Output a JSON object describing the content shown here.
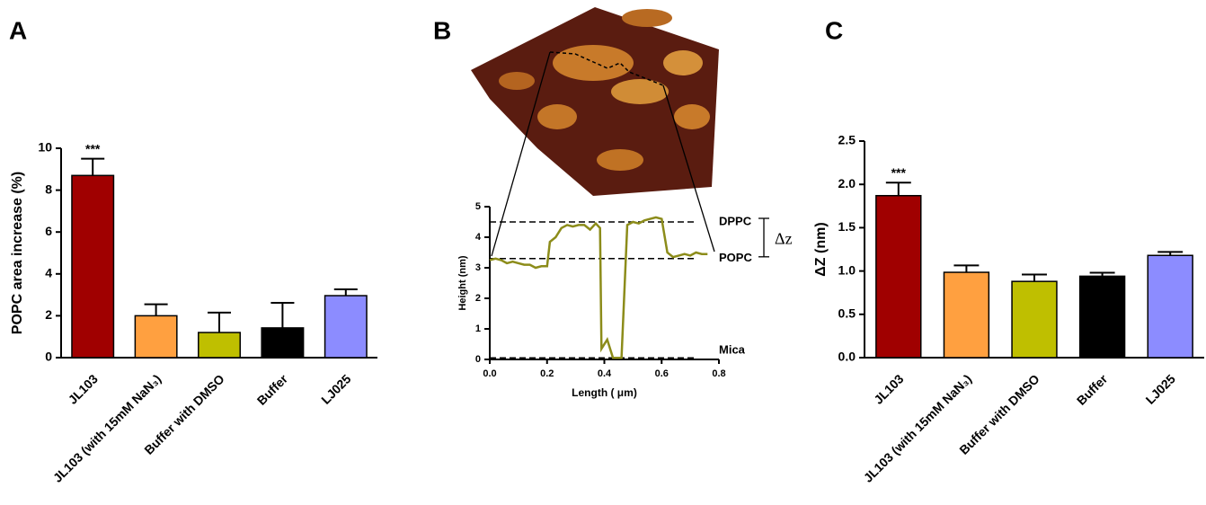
{
  "chart_data": [
    {
      "type": "bar",
      "panel_label": "A",
      "ylabel": "POPC area increase (%)",
      "categories": [
        "JL103",
        "JL103 (with 15mM NaN₃)",
        "Buffer with DMSO",
        "Buffer",
        "LJ025"
      ],
      "values": [
        8.7,
        2.0,
        1.2,
        1.42,
        2.96
      ],
      "errors": [
        0.8,
        0.55,
        0.95,
        1.2,
        0.3
      ],
      "colors": [
        "#a00000",
        "#ffa040",
        "#bfbf00",
        "#000000",
        "#8c8cff"
      ],
      "ylim": [
        0,
        10
      ],
      "yticks": [
        0,
        2,
        4,
        6,
        8,
        10
      ],
      "annotations": [
        {
          "text": "***",
          "x": "JL103"
        }
      ]
    },
    {
      "type": "line",
      "panel_label": "B",
      "xlabel": "Length ( μm)",
      "ylabel": "Height (nm)",
      "x": [
        0.0,
        0.02,
        0.04,
        0.06,
        0.08,
        0.1,
        0.12,
        0.14,
        0.16,
        0.18,
        0.2,
        0.21,
        0.23,
        0.25,
        0.27,
        0.29,
        0.31,
        0.33,
        0.35,
        0.37,
        0.385,
        0.39,
        0.41,
        0.43,
        0.45,
        0.46,
        0.48,
        0.5,
        0.52,
        0.54,
        0.56,
        0.58,
        0.6,
        0.62,
        0.64,
        0.66,
        0.68,
        0.7,
        0.72,
        0.74,
        0.76
      ],
      "values": [
        3.25,
        3.3,
        3.25,
        3.15,
        3.2,
        3.15,
        3.1,
        3.1,
        3.0,
        3.05,
        3.05,
        3.85,
        4.0,
        4.3,
        4.4,
        4.35,
        4.4,
        4.4,
        4.25,
        4.45,
        4.3,
        0.35,
        0.65,
        0.05,
        0.05,
        0.05,
        4.4,
        4.5,
        4.45,
        4.55,
        4.6,
        4.65,
        4.6,
        3.5,
        3.35,
        3.4,
        3.45,
        3.4,
        3.5,
        3.45,
        3.45
      ],
      "color": "#8c8c1a",
      "xlim": [
        0,
        0.8
      ],
      "xticks": [
        {
          "value": 0,
          "label": "0.0"
        },
        0.2,
        0.4,
        0.6,
        0.8
      ],
      "ylim": [
        0,
        5
      ],
      "yticks": [
        0,
        1,
        2,
        3,
        4,
        5
      ],
      "reference_lines": [
        {
          "label": "DPPC",
          "value": 4.5
        },
        {
          "label": "POPC",
          "value": 3.3
        },
        {
          "label": "Mica",
          "value": 0.05
        }
      ],
      "delta_label": "Δz"
    },
    {
      "type": "bar",
      "panel_label": "C",
      "ylabel": "ΔZ (nm)",
      "categories": [
        "JL103",
        "JL103 (with 15mM NaN₃)",
        "Buffer with DMSO",
        "Buffer",
        "LJ025"
      ],
      "values": [
        1.87,
        0.985,
        0.88,
        0.94,
        1.18
      ],
      "errors": [
        0.15,
        0.08,
        0.08,
        0.04,
        0.04
      ],
      "colors": [
        "#a00000",
        "#ffa040",
        "#bfbf00",
        "#000000",
        "#8c8cff"
      ],
      "ylim": [
        0,
        2.5
      ],
      "yticks": [
        {
          "value": 0,
          "label": "0.0"
        },
        0.5,
        {
          "value": 1,
          "label": "1.0"
        },
        1.5,
        {
          "value": 2,
          "label": "2.0"
        },
        2.5
      ],
      "annotations": [
        {
          "text": "***",
          "x": "JL103"
        }
      ]
    }
  ]
}
